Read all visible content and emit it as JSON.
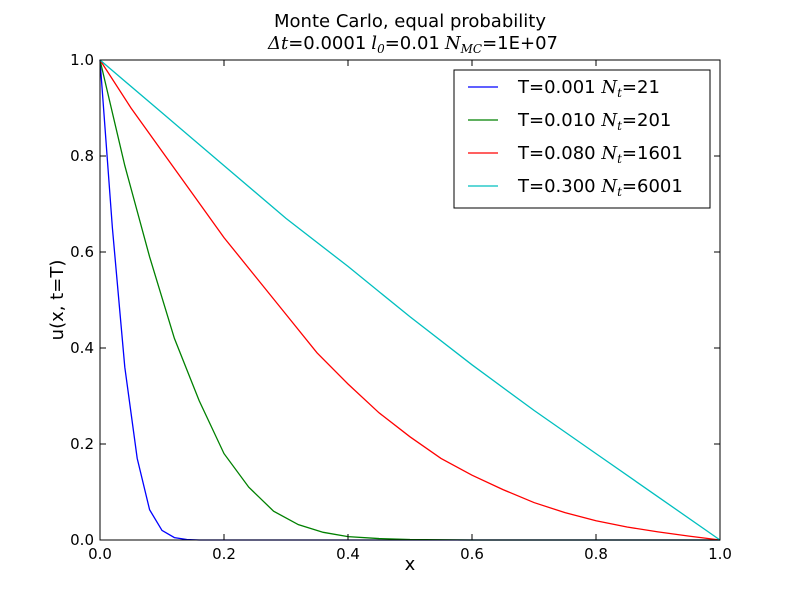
{
  "chart_data": {
    "type": "line",
    "title": "Monte Carlo, equal probability",
    "subtitle": {
      "dt_symbol": "Δt",
      "dt_value": "=0.0001",
      "l0_symbol": "l",
      "l0_sub": "0",
      "l0_value": "=0.01",
      "nmc_symbol": "N",
      "nmc_sub": "MC",
      "nmc_value": "=1E+07"
    },
    "xlabel": "x",
    "ylabel": "u(x, t=T)",
    "xlim": [
      0.0,
      1.0
    ],
    "ylim": [
      0.0,
      1.0
    ],
    "xticks": [
      "0.0",
      "0.2",
      "0.4",
      "0.6",
      "0.8",
      "1.0"
    ],
    "yticks": [
      "0.0",
      "0.2",
      "0.4",
      "0.6",
      "0.8",
      "1.0"
    ],
    "grid": false,
    "legend_position": "top-right",
    "series": [
      {
        "name_prefix": "T=0.001 ",
        "name_symbol": "N",
        "name_sub": "t",
        "name_suffix": "=21",
        "color": "#0000ff",
        "x": [
          0.0,
          0.02,
          0.04,
          0.06,
          0.08,
          0.1,
          0.12,
          0.14,
          0.16,
          0.2,
          0.3,
          0.4,
          0.5,
          0.6,
          0.7,
          0.8,
          0.9,
          1.0
        ],
        "y": [
          1.0,
          0.65,
          0.36,
          0.17,
          0.063,
          0.02,
          0.005,
          0.001,
          0.0,
          0.0,
          0.0,
          0.0,
          0.0,
          0.0,
          0.0,
          0.0,
          0.0,
          0.0
        ]
      },
      {
        "name_prefix": "T=0.010 ",
        "name_symbol": "N",
        "name_sub": "t",
        "name_suffix": "=201",
        "color": "#008000",
        "x": [
          0.0,
          0.04,
          0.08,
          0.12,
          0.16,
          0.2,
          0.24,
          0.28,
          0.32,
          0.36,
          0.4,
          0.45,
          0.5,
          0.6,
          0.7,
          0.8,
          0.9,
          1.0
        ],
        "y": [
          1.0,
          0.78,
          0.59,
          0.42,
          0.29,
          0.18,
          0.11,
          0.06,
          0.032,
          0.016,
          0.007,
          0.003,
          0.001,
          0.0,
          0.0,
          0.0,
          0.0,
          0.0
        ]
      },
      {
        "name_prefix": "T=0.080 ",
        "name_symbol": "N",
        "name_sub": "t",
        "name_suffix": "=1601",
        "color": "#ff0000",
        "x": [
          0.0,
          0.05,
          0.1,
          0.15,
          0.2,
          0.25,
          0.3,
          0.35,
          0.4,
          0.45,
          0.5,
          0.55,
          0.6,
          0.65,
          0.7,
          0.75,
          0.8,
          0.85,
          0.9,
          0.95,
          1.0
        ],
        "y": [
          1.0,
          0.9,
          0.81,
          0.72,
          0.63,
          0.55,
          0.47,
          0.39,
          0.325,
          0.265,
          0.215,
          0.17,
          0.135,
          0.105,
          0.078,
          0.057,
          0.04,
          0.027,
          0.017,
          0.008,
          0.0
        ]
      },
      {
        "name_prefix": "T=0.300 ",
        "name_symbol": "N",
        "name_sub": "t",
        "name_suffix": "=6001",
        "color": "#00bfbf",
        "x": [
          0.0,
          0.1,
          0.2,
          0.3,
          0.4,
          0.5,
          0.6,
          0.7,
          0.8,
          0.9,
          1.0
        ],
        "y": [
          1.0,
          0.89,
          0.78,
          0.67,
          0.57,
          0.465,
          0.365,
          0.27,
          0.18,
          0.09,
          0.0
        ]
      }
    ]
  }
}
